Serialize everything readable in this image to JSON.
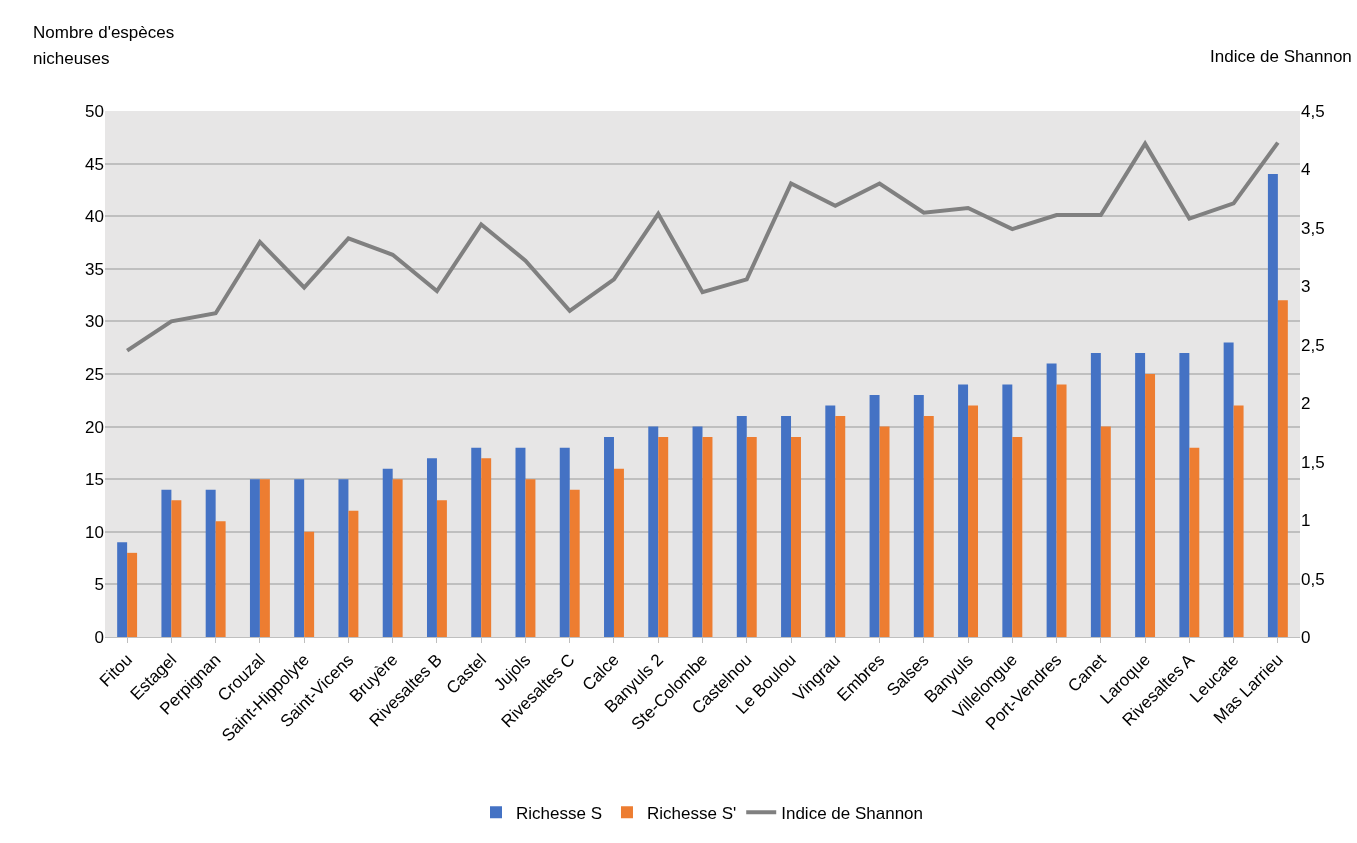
{
  "chart_data": {
    "type": "bar",
    "ylabel": "Nombre d'espèces nicheuses",
    "y2label": "Indice de Shannon",
    "categories": [
      "Fitou",
      "Estagel",
      "Perpignan",
      "Crouzal",
      "Saint-Hippolyte",
      "Saint-Vicens",
      "Bruyère",
      "Rivesaltes B",
      "Castel",
      "Jujols",
      "Rivesaltes C",
      "Calce",
      "Banyuls 2",
      "Ste-Colombe",
      "Castelnou",
      "Le Boulou",
      "Vingrau",
      "Embres",
      "Salses",
      "Banyuls",
      "Villelongue",
      "Port-Vendres",
      "Canet",
      "Laroque",
      "Rivesaltes A",
      "Leucate",
      "Mas Larrieu"
    ],
    "series": [
      {
        "name": "Richesse S",
        "color": "#4472c4",
        "values": [
          9,
          14,
          14,
          15,
          15,
          15,
          16,
          17,
          18,
          18,
          18,
          19,
          20,
          20,
          21,
          21,
          22,
          23,
          23,
          24,
          24,
          26,
          27,
          27,
          27,
          28,
          44
        ]
      },
      {
        "name": "Richesse S'",
        "color": "#ed7d31",
        "values": [
          8,
          13,
          11,
          15,
          10,
          12,
          15,
          13,
          17,
          15,
          14,
          16,
          19,
          19,
          19,
          19,
          21,
          20,
          21,
          22,
          19,
          24,
          20,
          25,
          18,
          22,
          32
        ]
      },
      {
        "name": "Indice de Shannon",
        "type": "line",
        "axis": "y2",
        "color": "#808080",
        "values": [
          2.45,
          2.7,
          2.77,
          3.38,
          2.99,
          3.41,
          3.27,
          2.96,
          3.53,
          3.22,
          2.79,
          3.06,
          3.62,
          2.95,
          3.06,
          3.88,
          3.69,
          3.88,
          3.63,
          3.67,
          3.49,
          3.61,
          3.61,
          4.22,
          3.58,
          3.71,
          4.23
        ]
      }
    ],
    "ylim": [
      0,
      50
    ],
    "yticks": [
      0,
      5,
      10,
      15,
      20,
      25,
      30,
      35,
      40,
      45,
      50
    ],
    "y2lim": [
      0,
      4.5
    ],
    "y2ticks": [
      0,
      {
        "value": 0.5,
        "label": "0,5"
      },
      1,
      {
        "value": 1.5,
        "label": "1,5"
      },
      2,
      {
        "value": 2.5,
        "label": "2,5"
      },
      3,
      {
        "value": 3.5,
        "label": "3,5"
      },
      4,
      {
        "value": 4.5,
        "label": "4,5"
      }
    ],
    "grid": "y",
    "legend": "bottom",
    "marker": "none",
    "line_style": "solid"
  }
}
